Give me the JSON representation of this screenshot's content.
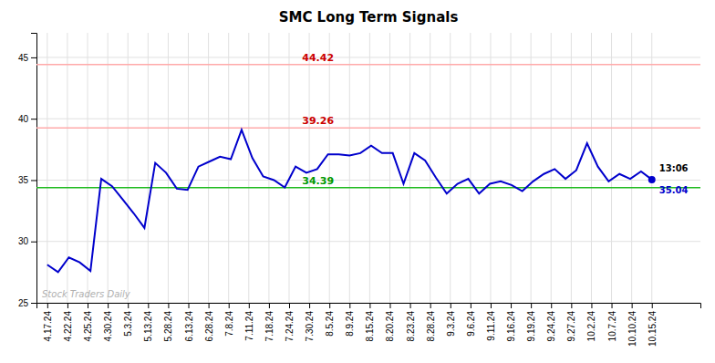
{
  "chart_data": {
    "type": "line",
    "title": "SMC Long Term Signals",
    "values": [
      28.1,
      27.5,
      28.7,
      28.3,
      27.6,
      35.1,
      34.5,
      33.4,
      32.3,
      31.1,
      36.4,
      35.6,
      34.3,
      34.2,
      36.1,
      36.5,
      36.9,
      36.7,
      39.1,
      36.8,
      35.3,
      35.0,
      34.4,
      36.1,
      35.6,
      35.9,
      37.1,
      37.1,
      37.0,
      37.2,
      37.8,
      37.2,
      37.2,
      34.7,
      37.2,
      36.6,
      35.2,
      33.9,
      34.7,
      35.1,
      33.9,
      34.7,
      34.9,
      34.6,
      34.1,
      34.9,
      35.5,
      35.9,
      35.1,
      35.8,
      38.0,
      36.1,
      34.9,
      35.5,
      35.1,
      35.7,
      35.04
    ],
    "color": "#0000cc",
    "xlim": [
      -1,
      60.5
    ],
    "xticks": [
      {
        "value": 0,
        "label": "4.17.24"
      },
      {
        "value": 1.8666666666666667,
        "label": "4.22.24"
      },
      {
        "value": 3.7333333333333334,
        "label": "4.25.24"
      },
      {
        "value": 5.6,
        "label": "4.30.24"
      },
      {
        "value": 7.466666666666667,
        "label": "5.3.24"
      },
      {
        "value": 9.333333333333334,
        "label": "5.13.24"
      },
      {
        "value": 11.2,
        "label": "5.28.24"
      },
      {
        "value": 13.066666666666666,
        "label": "6.13.24"
      },
      {
        "value": 14.933333333333334,
        "label": "6.28.24"
      },
      {
        "value": 16.8,
        "label": "7.8.24"
      },
      {
        "value": 18.666666666666668,
        "label": "7.11.24"
      },
      {
        "value": 20.533333333333335,
        "label": "7.18.24"
      },
      {
        "value": 22.4,
        "label": "7.24.24"
      },
      {
        "value": 24.266666666666666,
        "label": "7.30.24"
      },
      {
        "value": 26.133333333333333,
        "label": "8.5.24"
      },
      {
        "value": 28,
        "label": "8.9.24"
      },
      {
        "value": 29.866666666666667,
        "label": "8.15.24"
      },
      {
        "value": 31.733333333333334,
        "label": "8.20.24"
      },
      {
        "value": 33.6,
        "label": "8.23.24"
      },
      {
        "value": 35.46666666666667,
        "label": "8.28.24"
      },
      {
        "value": 37.333333333333336,
        "label": "9.3.24"
      },
      {
        "value": 39.2,
        "label": "9.6.24"
      },
      {
        "value": 41.06666666666667,
        "label": "9.11.24"
      },
      {
        "value": 42.93333333333333,
        "label": "9.16.24"
      },
      {
        "value": 44.8,
        "label": "9.19.24"
      },
      {
        "value": 46.666666666666664,
        "label": "9.24.24"
      },
      {
        "value": 48.53333333333333,
        "label": "9.27.24"
      },
      {
        "value": 50.4,
        "label": "10.2.24"
      },
      {
        "value": 52.266666666666666,
        "label": "10.7.24"
      },
      {
        "value": 54.13333333333333,
        "label": "10.10.24"
      },
      {
        "value": 56,
        "label": "10.15.24"
      }
    ],
    "ylim": [
      25,
      47
    ],
    "yticks": [
      25,
      30,
      35,
      40,
      45
    ],
    "grid": true,
    "hlines": [
      {
        "value": 34.39,
        "label": "34.39",
        "color": "#22bb22",
        "label_color": "#009900"
      },
      {
        "value": 39.26,
        "label": "39.26",
        "color": "#ffaaaa",
        "label_color": "#cc0000"
      },
      {
        "value": 44.42,
        "label": "44.42",
        "color": "#ffaaaa",
        "label_color": "#cc0000"
      }
    ],
    "annotations": [
      {
        "text": "13:06"
      },
      {
        "text": "35.04",
        "color": "#0000cc"
      }
    ],
    "watermark": "Stock Traders Daily"
  }
}
